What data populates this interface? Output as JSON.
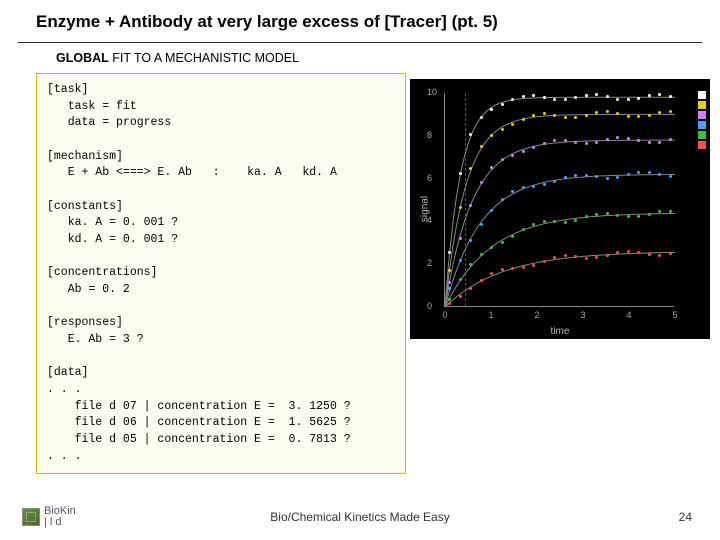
{
  "title": "Enzyme + Antibody at very large excess of [Tracer] (pt. 5)",
  "subtitle_bold": "GLOBAL",
  "subtitle_rest": " FIT TO A MECHANISTIC MODEL",
  "code": "[task]\n   task = fit\n   data = progress\n\n[mechanism]\n   E + Ab <===> E. Ab   :    ka. A   kd. A\n\n[constants]\n   ka. A = 0. 001 ?\n   kd. A = 0. 001 ?\n\n[concentrations]\n   Ab = 0. 2\n\n[responses]\n   E. Ab = 3 ?\n\n[data]\n. . .\n    file d 07 | concentration E =  3. 1250 ?\n    file d 06 | concentration E =  1. 5625 ?\n    file d 05 | concentration E =  0. 7813 ?\n. . .",
  "chart": {
    "background_color": "#000000",
    "axis_color": "#888888",
    "ylabel": "signal",
    "xlabel": "time",
    "xlim": [
      0,
      5
    ],
    "ylim": [
      0,
      10
    ],
    "xticks": [
      0,
      1,
      2,
      3,
      4,
      5
    ],
    "yticks": [
      0,
      2,
      4,
      6,
      8,
      10
    ],
    "series": [
      {
        "color": "#ffffff",
        "amp": 0.98,
        "k": 3.0
      },
      {
        "color": "#e6d000",
        "amp": 0.9,
        "k": 2.2
      },
      {
        "color": "#d07fff",
        "amp": 0.78,
        "k": 1.7
      },
      {
        "color": "#4aa0ff",
        "amp": 0.62,
        "k": 1.3
      },
      {
        "color": "#40c040",
        "amp": 0.44,
        "k": 1.0
      },
      {
        "color": "#ff5050",
        "amp": 0.26,
        "k": 0.8
      }
    ],
    "n_points": 22
  },
  "footer": "Bio/Chemical Kinetics Made Easy",
  "pagenum": "24",
  "logo_text_top": "Bio",
  "logo_text_bottom": "| l d"
}
